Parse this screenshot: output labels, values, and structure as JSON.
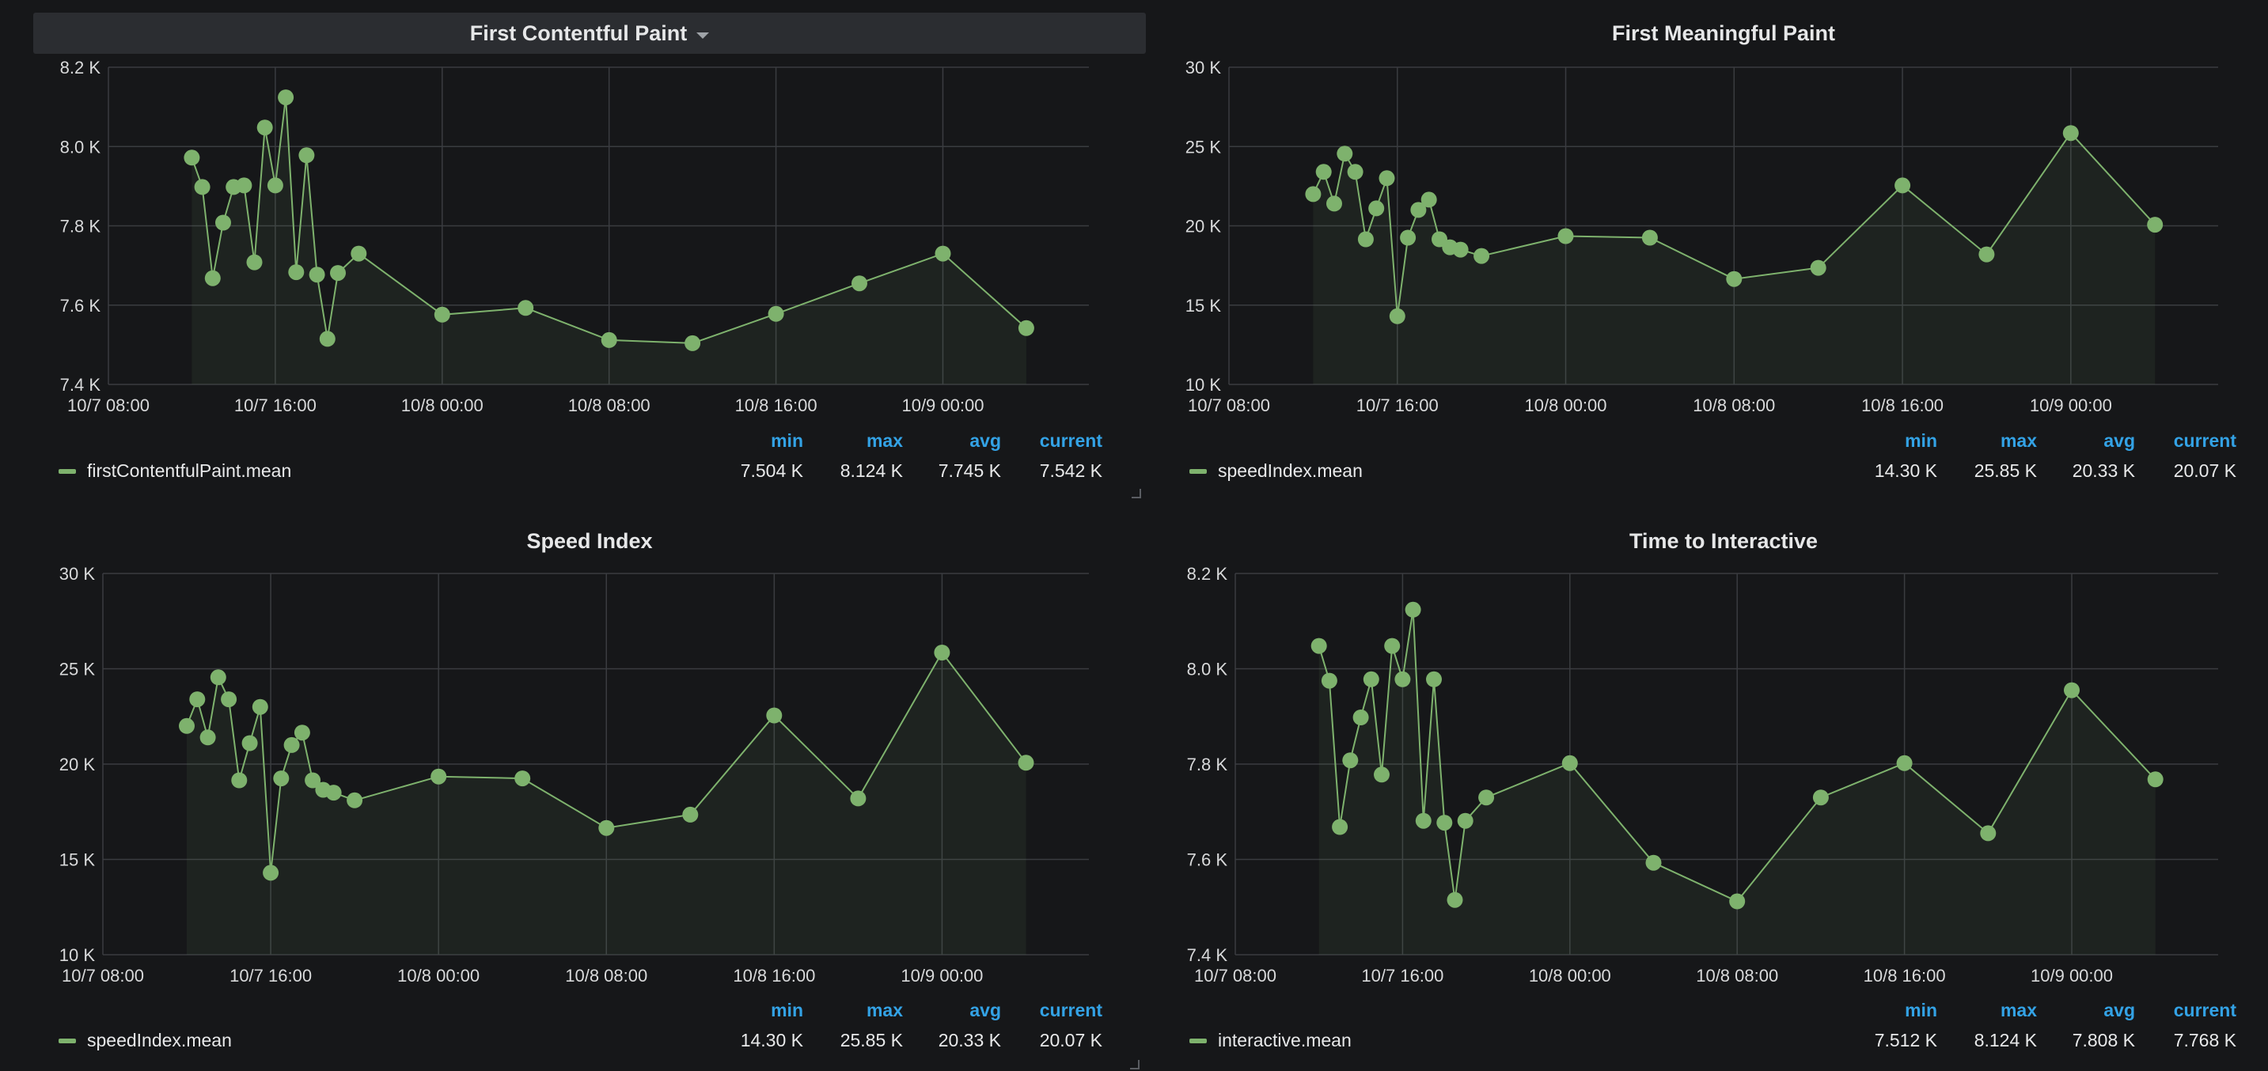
{
  "theme": {
    "series_color": "#7eb26d",
    "grid_color": "#3a3c40",
    "legend_header_color": "#33a2e5"
  },
  "legend_headers": {
    "min": "min",
    "max": "max",
    "avg": "avg",
    "current": "current"
  },
  "panels": [
    {
      "title": "First Contentful Paint",
      "has_menu": true,
      "series_name": "firstContentfulPaint.mean",
      "stats": {
        "min": "7.504 K",
        "max": "8.124 K",
        "avg": "7.745 K",
        "current": "7.542 K"
      },
      "chart_data": {
        "type": "line",
        "y_ticks": [
          "7.4 K",
          "7.6 K",
          "7.8 K",
          "8.0 K",
          "8.2 K"
        ],
        "ylim": [
          7400,
          8200
        ],
        "x_ticks": [
          "10/7 08:00",
          "10/7 16:00",
          "10/8 00:00",
          "10/8 08:00",
          "10/8 16:00",
          "10/9 00:00"
        ],
        "x_tick_hours": [
          0,
          8,
          16,
          24,
          32,
          40
        ],
        "xlim_hours": [
          0,
          47
        ],
        "series": [
          {
            "name": "firstContentfulPaint.mean",
            "x_hours": [
              4.0,
              4.5,
              5.0,
              5.5,
              6.0,
              6.5,
              7.0,
              7.5,
              8.0,
              8.5,
              9.0,
              9.5,
              10.0,
              10.5,
              11.0,
              12.0,
              16.0,
              20.0,
              24.0,
              28.0,
              32.0,
              36.0,
              40.0,
              44.0
            ],
            "values": [
              7972,
              7898,
              7668,
              7808,
              7898,
              7902,
              7708,
              8048,
              7902,
              8124,
              7683,
              7978,
              7677,
              7515,
              7681,
              7730,
              7576,
              7593,
              7512,
              7504,
              7578,
              7655,
              7730,
              7542
            ]
          }
        ]
      }
    },
    {
      "title": "First Meaningful Paint",
      "has_menu": false,
      "series_name": "speedIndex.mean",
      "stats": {
        "min": "14.30 K",
        "max": "25.85 K",
        "avg": "20.33 K",
        "current": "20.07 K"
      },
      "chart_data": {
        "type": "line",
        "y_ticks": [
          "10 K",
          "15 K",
          "20 K",
          "25 K",
          "30 K"
        ],
        "ylim": [
          10000,
          30000
        ],
        "x_ticks": [
          "10/7 08:00",
          "10/7 16:00",
          "10/8 00:00",
          "10/8 08:00",
          "10/8 16:00",
          "10/9 00:00"
        ],
        "x_tick_hours": [
          0,
          8,
          16,
          24,
          32,
          40
        ],
        "xlim_hours": [
          0,
          47
        ],
        "series": [
          {
            "name": "speedIndex.mean",
            "x_hours": [
              4.0,
              4.5,
              5.0,
              5.5,
              6.0,
              6.5,
              7.0,
              7.5,
              8.0,
              8.5,
              9.0,
              9.5,
              10.0,
              10.5,
              11.0,
              12.0,
              16.0,
              20.0,
              24.0,
              28.0,
              32.0,
              36.0,
              40.0,
              44.0
            ],
            "values": [
              22000,
              23400,
              21400,
              24550,
              23400,
              19150,
              21100,
              23000,
              14300,
              19250,
              21000,
              21650,
              19150,
              18650,
              18500,
              18100,
              19350,
              19250,
              16650,
              17350,
              22550,
              18200,
              25850,
              20070
            ]
          }
        ]
      }
    },
    {
      "title": "Speed Index",
      "has_menu": false,
      "series_name": "speedIndex.mean",
      "stats": {
        "min": "14.30 K",
        "max": "25.85 K",
        "avg": "20.33 K",
        "current": "20.07 K"
      },
      "chart_data": {
        "type": "line",
        "y_ticks": [
          "10 K",
          "15 K",
          "20 K",
          "25 K",
          "30 K"
        ],
        "ylim": [
          10000,
          30000
        ],
        "x_ticks": [
          "10/7 08:00",
          "10/7 16:00",
          "10/8 00:00",
          "10/8 08:00",
          "10/8 16:00",
          "10/9 00:00"
        ],
        "x_tick_hours": [
          0,
          8,
          16,
          24,
          32,
          40
        ],
        "xlim_hours": [
          0,
          47
        ],
        "series": [
          {
            "name": "speedIndex.mean",
            "x_hours": [
              4.0,
              4.5,
              5.0,
              5.5,
              6.0,
              6.5,
              7.0,
              7.5,
              8.0,
              8.5,
              9.0,
              9.5,
              10.0,
              10.5,
              11.0,
              12.0,
              16.0,
              20.0,
              24.0,
              28.0,
              32.0,
              36.0,
              40.0,
              44.0
            ],
            "values": [
              22000,
              23400,
              21400,
              24550,
              23400,
              19150,
              21100,
              23000,
              14300,
              19250,
              21000,
              21650,
              19150,
              18650,
              18500,
              18100,
              19350,
              19250,
              16650,
              17350,
              22550,
              18200,
              25850,
              20070
            ]
          }
        ]
      }
    },
    {
      "title": "Time to Interactive",
      "has_menu": false,
      "series_name": "interactive.mean",
      "stats": {
        "min": "7.512 K",
        "max": "8.124 K",
        "avg": "7.808 K",
        "current": "7.768 K"
      },
      "chart_data": {
        "type": "line",
        "y_ticks": [
          "7.4 K",
          "7.6 K",
          "7.8 K",
          "8.0 K",
          "8.2 K"
        ],
        "ylim": [
          7400,
          8200
        ],
        "x_ticks": [
          "10/7 08:00",
          "10/7 16:00",
          "10/8 00:00",
          "10/8 08:00",
          "10/8 16:00",
          "10/9 00:00"
        ],
        "x_tick_hours": [
          0,
          8,
          16,
          24,
          32,
          40
        ],
        "xlim_hours": [
          0,
          47
        ],
        "series": [
          {
            "name": "interactive.mean",
            "x_hours": [
              4.0,
              4.5,
              5.0,
              5.5,
              6.0,
              6.5,
              7.0,
              7.5,
              8.0,
              8.5,
              9.0,
              9.5,
              10.0,
              10.5,
              11.0,
              12.0,
              16.0,
              20.0,
              24.0,
              28.0,
              32.0,
              36.0,
              40.0,
              44.0
            ],
            "values": [
              8048,
              7975,
              7668,
              7808,
              7898,
              7978,
              7778,
              8048,
              7978,
              8124,
              7681,
              7978,
              7677,
              7515,
              7681,
              7730,
              7802,
              7593,
              7512,
              7730,
              7802,
              7655,
              7955,
              7768
            ]
          }
        ]
      }
    }
  ]
}
